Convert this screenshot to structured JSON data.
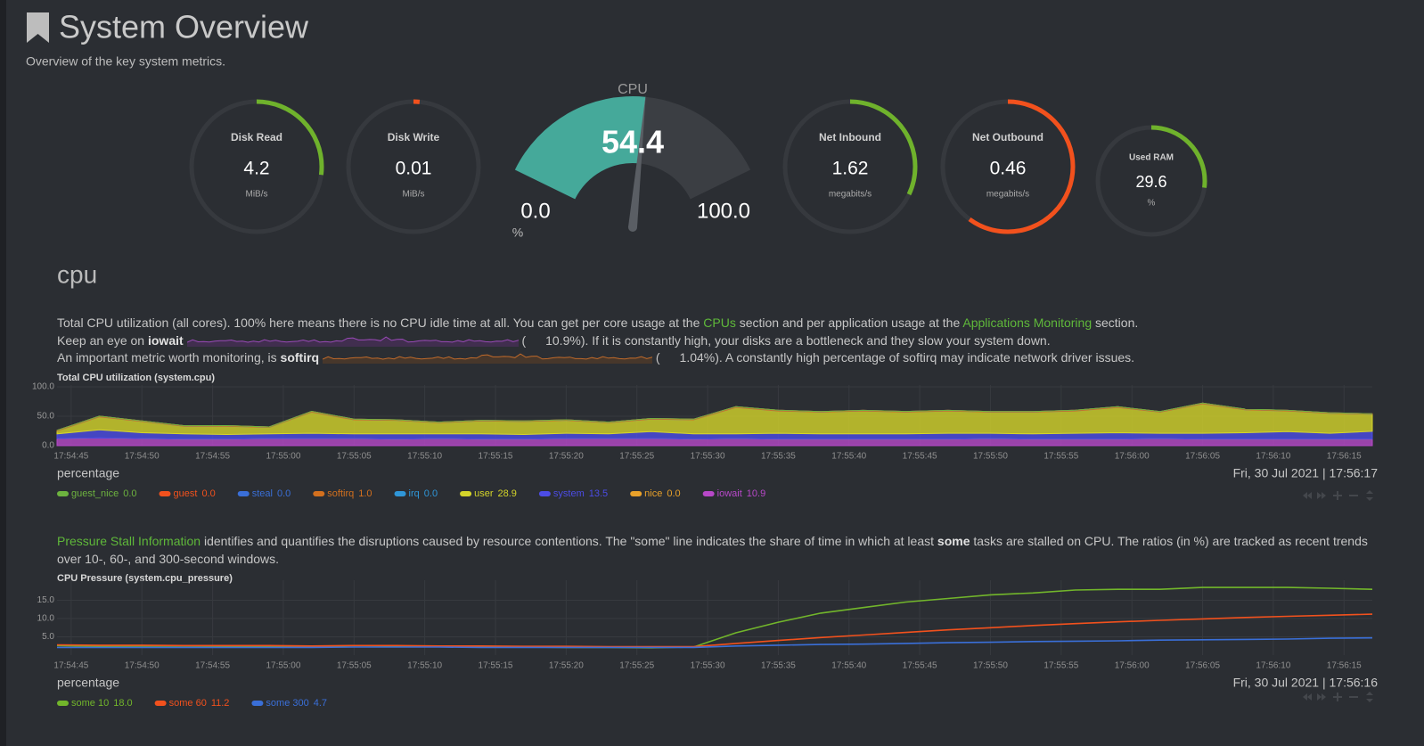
{
  "header": {
    "title": "System Overview",
    "subtitle": "Overview of the key system metrics."
  },
  "gauges": [
    {
      "label": "Disk Read",
      "value": 4.2,
      "unit": "MiB/s"
    },
    {
      "label": "Disk Write",
      "value": 0.01,
      "unit": "MiB/s"
    },
    {
      "label": "Net Inbound",
      "value": 1.62,
      "unit": "megabits/s"
    },
    {
      "label": "Net Outbound",
      "value": 0.46,
      "unit": "megabits/s"
    },
    {
      "label": "Used RAM",
      "value": 29.6,
      "unit": "%"
    }
  ],
  "cpu_gauge": {
    "title": "CPU",
    "value": 54.4,
    "min": {
      "value": 0,
      "label": "0.0"
    },
    "max": {
      "value": 100,
      "label": "100.0"
    },
    "unit": "%"
  },
  "cpu_section": {
    "heading": "cpu",
    "lines": [
      [
        "Total CPU utilization (all cores). 100% here means there is no CPU idle time at all. You can get per core usage at the ",
        "CPUs",
        " section and per application usage at the ",
        "Applications Monitoring",
        " section."
      ],
      [
        "Keep an eye on ",
        "iowait",
        "(",
        "10.9%",
        "). If it is constantly high, your disks are a bottleneck and they slow your system down."
      ],
      [
        "An important metric worth monitoring, is ",
        "softirq",
        "(",
        "1.04%",
        "). A constantly high percentage of softirq may indicate network driver issues."
      ]
    ]
  },
  "pressure_section": {
    "text": [
      "Pressure Stall Information",
      " identifies and quantifies the disruptions caused by resource contentions. The \"some\" line indicates the share of time in which at least ",
      "some",
      " tasks are stalled on CPU. The ratios (in %) are tracked as recent trends over 10-, 60-, and 300-second windows."
    ]
  },
  "chart_data": [
    {
      "type": "area",
      "stacked": true,
      "title": "Total CPU utilization (system.cpu)",
      "units": "percentage",
      "timestamp": "Fri, 30 Jul 2021 | 17:56:17",
      "x": [
        "17:54:44",
        "17:54:47",
        "17:54:50",
        "17:54:53",
        "17:54:56",
        "17:54:59",
        "17:55:02",
        "17:55:05",
        "17:55:08",
        "17:55:11",
        "17:55:14",
        "17:55:17",
        "17:55:20",
        "17:55:23",
        "17:55:26",
        "17:55:29",
        "17:55:32",
        "17:55:35",
        "17:55:38",
        "17:55:41",
        "17:55:44",
        "17:55:47",
        "17:55:50",
        "17:55:53",
        "17:55:56",
        "17:55:59",
        "17:56:02",
        "17:56:05",
        "17:56:08",
        "17:56:11",
        "17:56:14",
        "17:56:17"
      ],
      "xlim": [
        "17:54:44",
        "17:56:17"
      ],
      "xticks": [
        "17:54:45",
        "17:54:50",
        "17:54:55",
        "17:55:00",
        "17:55:05",
        "17:55:10",
        "17:55:15",
        "17:55:20",
        "17:55:25",
        "17:55:30",
        "17:55:35",
        "17:55:40",
        "17:55:45",
        "17:55:50",
        "17:55:55",
        "17:56:00",
        "17:56:05",
        "17:56:10",
        "17:56:15"
      ],
      "ylim": [
        0,
        100
      ],
      "yticks": [
        {
          "value": 0,
          "label": "0.0"
        },
        {
          "value": 50,
          "label": "50.0"
        },
        {
          "value": 100,
          "label": "100.0"
        }
      ],
      "grid": true,
      "series": [
        {
          "name": "guest_nice",
          "color": "#6db33f",
          "current": "0.0",
          "values": [
            0,
            0,
            0,
            0,
            0,
            0,
            0,
            0,
            0,
            0,
            0,
            0,
            0,
            0,
            0,
            0,
            0,
            0,
            0,
            0,
            0,
            0,
            0,
            0,
            0,
            0,
            0,
            0,
            0,
            0,
            0,
            0
          ]
        },
        {
          "name": "guest",
          "color": "#f2511d",
          "current": "0.0",
          "values": [
            0,
            0,
            0,
            0,
            0,
            0,
            0,
            0,
            0,
            0,
            0,
            0,
            0,
            0,
            0,
            0,
            0,
            0,
            0,
            0,
            0,
            0,
            0,
            0,
            0,
            0,
            0,
            0,
            0,
            0,
            0,
            0
          ]
        },
        {
          "name": "steal",
          "color": "#3a6fd8",
          "current": "0.0",
          "values": [
            0,
            0,
            0,
            0,
            0,
            0,
            0,
            0,
            0,
            0,
            0,
            0,
            0,
            0,
            0,
            0,
            0,
            0,
            0,
            0,
            0,
            0,
            0,
            0,
            0,
            0,
            0,
            0,
            0,
            0,
            0,
            0
          ]
        },
        {
          "name": "softirq",
          "color": "#d3701e",
          "current": "1.0",
          "values": [
            1,
            1.2,
            0.9,
            1,
            1.1,
            0.8,
            1.3,
            1,
            0.9,
            1,
            1.1,
            1,
            0.9,
            1,
            1.2,
            1,
            1.4,
            1.1,
            1,
            1,
            1.2,
            1,
            0.9,
            1,
            1.1,
            1.2,
            1,
            1.3,
            1.1,
            1,
            0.9,
            1
          ]
        },
        {
          "name": "irq",
          "color": "#2f96d8",
          "current": "0.0",
          "values": [
            0,
            0,
            0,
            0,
            0,
            0,
            0,
            0,
            0,
            0,
            0,
            0,
            0,
            0,
            0,
            0,
            0,
            0,
            0,
            0,
            0,
            0,
            0,
            0,
            0,
            0,
            0,
            0,
            0,
            0,
            0,
            0
          ]
        },
        {
          "name": "user",
          "color": "#d4d42a",
          "current": "28.9",
          "values": [
            5,
            22,
            19,
            13,
            14,
            11,
            36,
            24,
            23,
            19,
            22,
            22,
            22,
            19,
            21,
            24,
            45,
            38,
            37,
            39,
            37,
            38,
            36,
            37,
            38,
            43,
            36,
            50,
            39,
            35,
            34,
            28.9
          ]
        },
        {
          "name": "system",
          "color": "#4c4ce6",
          "current": "13.5",
          "values": [
            8,
            14,
            10,
            9,
            8,
            8,
            9,
            8,
            9,
            8,
            9,
            8,
            9,
            8,
            12,
            9,
            8,
            10,
            9,
            9,
            9,
            10,
            9,
            9,
            10,
            11,
            9,
            10,
            11,
            13,
            10,
            13.5
          ]
        },
        {
          "name": "nice",
          "color": "#e9a12a",
          "current": "0.0",
          "values": [
            0,
            0,
            0,
            0,
            0,
            0,
            0,
            0,
            0,
            0,
            0,
            0,
            0,
            0,
            0,
            0,
            0,
            0,
            0,
            0,
            0,
            0,
            0,
            0,
            0,
            0,
            0,
            0,
            0,
            0,
            0,
            0
          ]
        },
        {
          "name": "iowait",
          "color": "#b748c8",
          "current": "10.9",
          "values": [
            12,
            13,
            12,
            11,
            11,
            12,
            12,
            12,
            11,
            12,
            11,
            11,
            12,
            12,
            12,
            11,
            12,
            11,
            11,
            11,
            11,
            11,
            12,
            11,
            11,
            11,
            12,
            11,
            11,
            11,
            11,
            10.9
          ]
        }
      ]
    },
    {
      "type": "line",
      "title": "CPU Pressure (system.cpu_pressure)",
      "units": "percentage",
      "timestamp": "Fri, 30 Jul 2021 | 17:56:16",
      "x": [
        "17:54:44",
        "17:54:47",
        "17:54:50",
        "17:54:53",
        "17:54:56",
        "17:54:59",
        "17:55:02",
        "17:55:05",
        "17:55:08",
        "17:55:11",
        "17:55:14",
        "17:55:17",
        "17:55:20",
        "17:55:23",
        "17:55:26",
        "17:55:29",
        "17:55:32",
        "17:55:35",
        "17:55:38",
        "17:55:41",
        "17:55:44",
        "17:55:47",
        "17:55:50",
        "17:55:53",
        "17:55:56",
        "17:55:59",
        "17:56:02",
        "17:56:05",
        "17:56:08",
        "17:56:11",
        "17:56:14",
        "17:56:17"
      ],
      "xlim": [
        "17:54:44",
        "17:56:17"
      ],
      "xticks": [
        "17:54:45",
        "17:54:50",
        "17:54:55",
        "17:55:00",
        "17:55:05",
        "17:55:10",
        "17:55:15",
        "17:55:20",
        "17:55:25",
        "17:55:30",
        "17:55:35",
        "17:55:40",
        "17:55:45",
        "17:55:50",
        "17:55:55",
        "17:56:00",
        "17:56:05",
        "17:56:10",
        "17:56:15"
      ],
      "ylim": [
        0,
        20
      ],
      "yticks": [
        {
          "value": 5,
          "label": "5.0"
        },
        {
          "value": 10,
          "label": "10.0"
        },
        {
          "value": 15,
          "label": "15.0"
        }
      ],
      "grid": true,
      "series": [
        {
          "name": "some 10",
          "color": "#72b62b",
          "current": "18.0",
          "values": [
            2.6,
            2.4,
            2.5,
            2.5,
            2.4,
            2.3,
            2.2,
            2.6,
            2.5,
            2.4,
            2.3,
            2.2,
            2.1,
            2.1,
            2.0,
            2.2,
            6.1,
            9,
            11.5,
            13,
            14.5,
            15.5,
            16.5,
            17,
            17.8,
            18,
            18,
            18.5,
            18.5,
            18.5,
            18.3,
            18.0
          ]
        },
        {
          "name": "some 60",
          "color": "#f2511d",
          "current": "11.2",
          "values": [
            2.8,
            2.7,
            2.7,
            2.6,
            2.6,
            2.6,
            2.5,
            2.6,
            2.6,
            2.5,
            2.5,
            2.4,
            2.4,
            2.3,
            2.3,
            2.3,
            3.2,
            4.0,
            4.8,
            5.5,
            6.2,
            6.9,
            7.5,
            8.1,
            8.6,
            9.1,
            9.5,
            9.9,
            10.3,
            10.6,
            10.9,
            11.2
          ]
        },
        {
          "name": "some 300",
          "color": "#3a6fd8",
          "current": "4.7",
          "values": [
            2.1,
            2.1,
            2.1,
            2.1,
            2.1,
            2.1,
            2.1,
            2.2,
            2.2,
            2.2,
            2.1,
            2.1,
            2.1,
            2.1,
            2.1,
            2.1,
            2.5,
            2.7,
            2.9,
            3.0,
            3.2,
            3.4,
            3.5,
            3.7,
            3.8,
            3.9,
            4.1,
            4.2,
            4.3,
            4.4,
            4.6,
            4.7
          ]
        }
      ]
    }
  ]
}
